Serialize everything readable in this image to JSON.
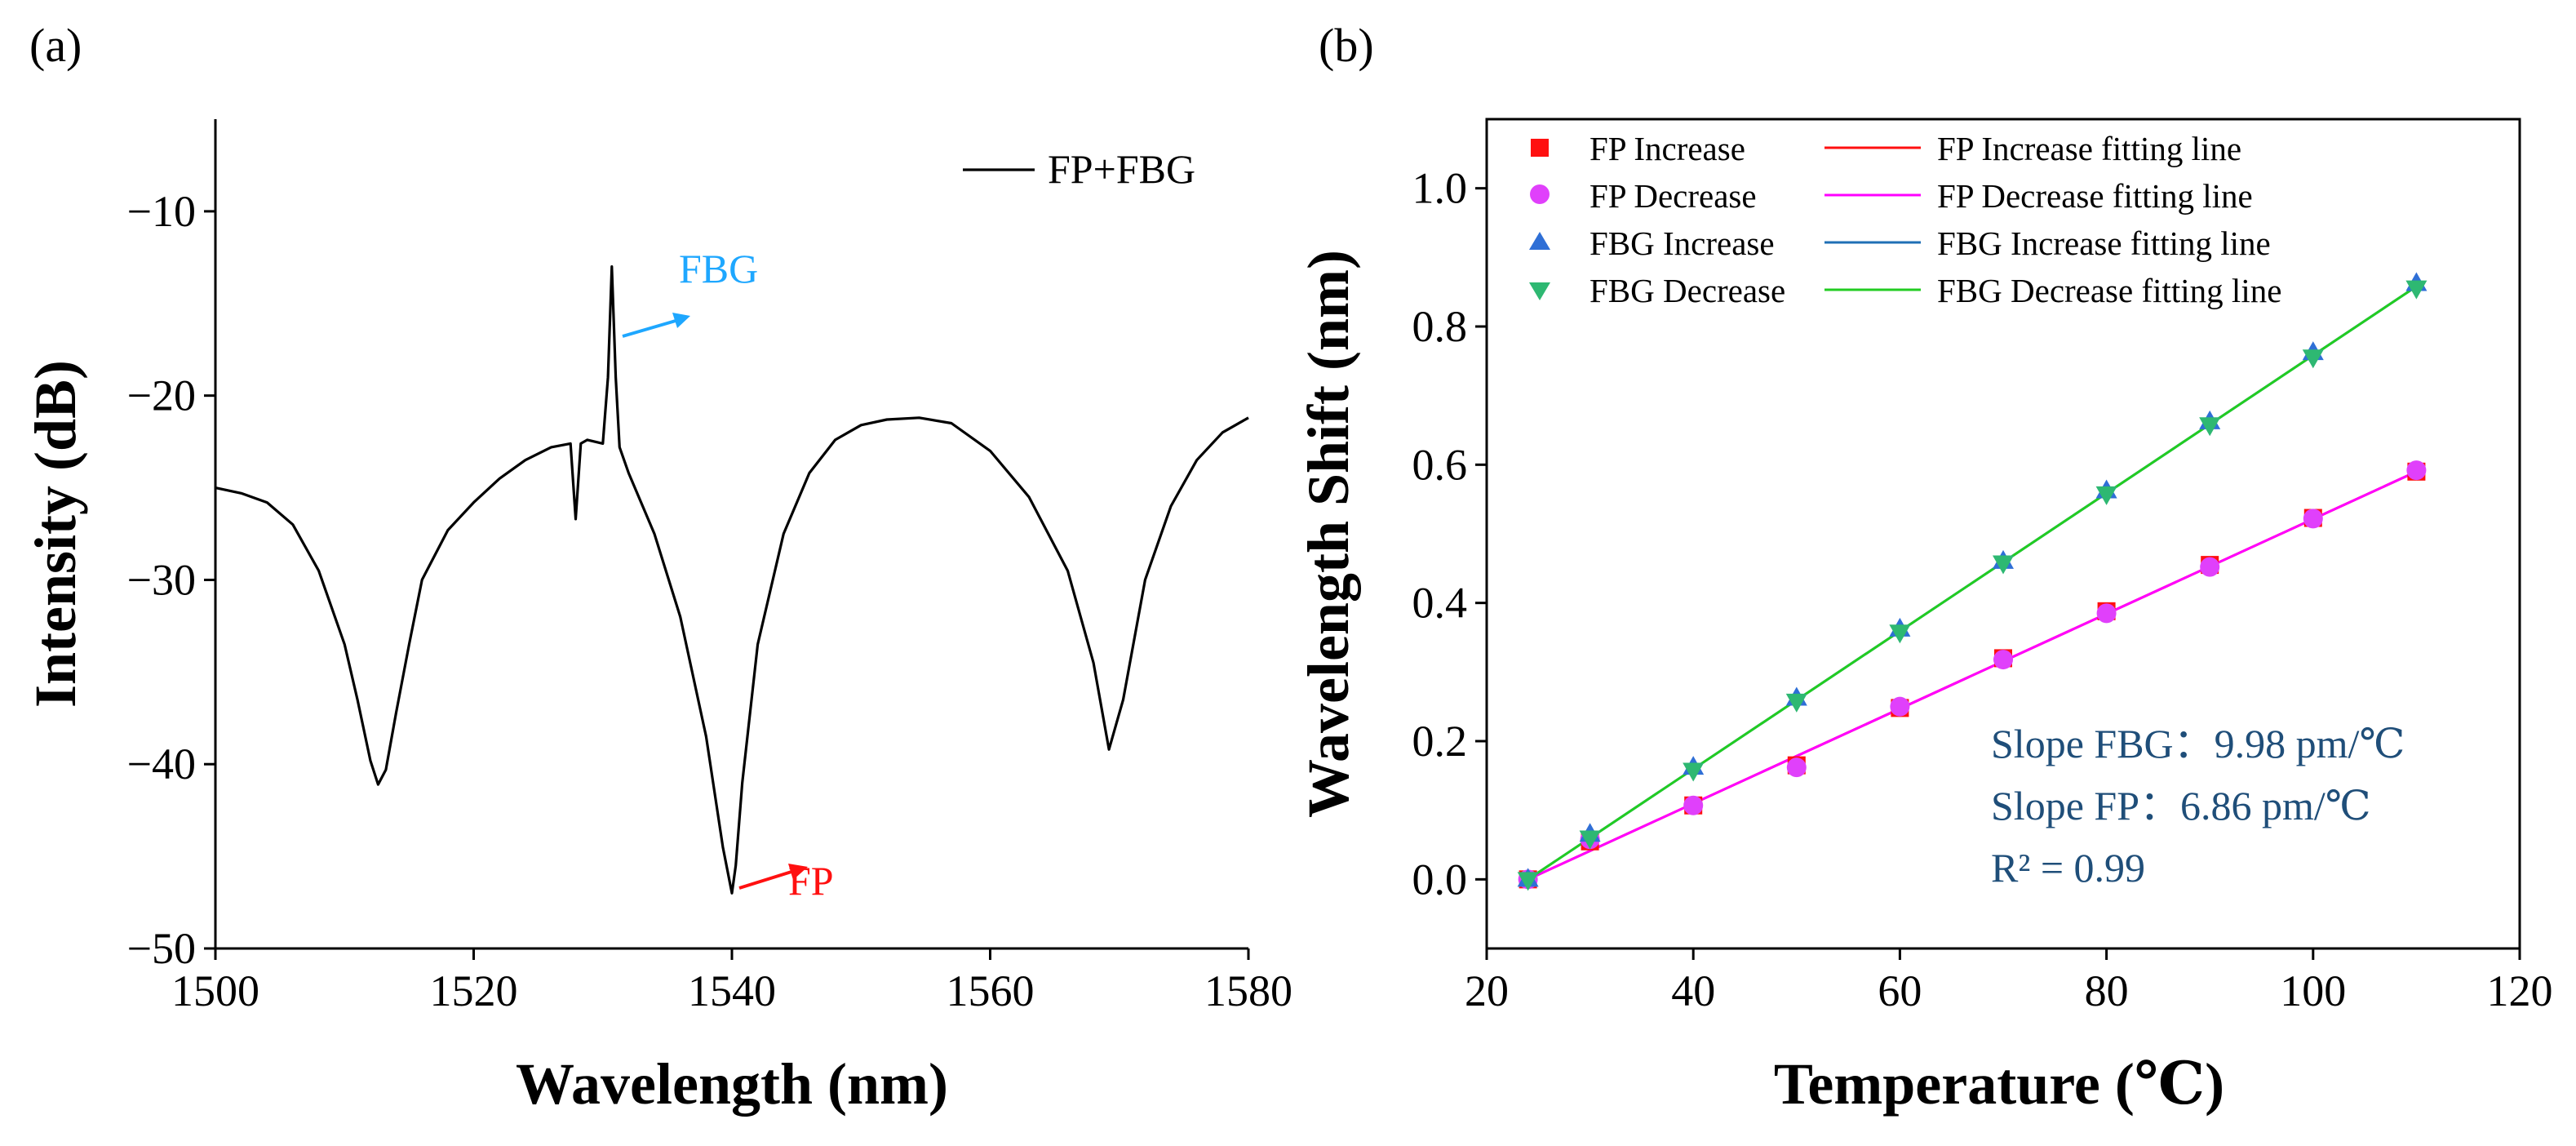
{
  "panels": {
    "a": {
      "label": "(a)",
      "chart_data": {
        "type": "line",
        "xlabel": "Wavelength (nm)",
        "ylabel": "Intensity (dB)",
        "xlim": [
          1500,
          1580
        ],
        "ylim": [
          -50,
          -5
        ],
        "xticks": [
          "1500",
          "1520",
          "1540",
          "1560",
          "1580"
        ],
        "yticks": [
          "−10",
          "−20",
          "−30",
          "−40",
          "−50"
        ],
        "xtick_values": [
          1500,
          1520,
          1540,
          1560,
          1580
        ],
        "ytick_values": [
          -10,
          -20,
          -30,
          -40,
          -50
        ],
        "legend_position": "top-right",
        "series": [
          {
            "name": "FP+FBG",
            "color": "#000000",
            "x": [
              1500,
              1502,
              1504,
              1506,
              1508,
              1510,
              1511,
              1512,
              1512.6,
              1513.2,
              1514,
              1515,
              1516,
              1518,
              1520,
              1522,
              1524,
              1526,
              1527.5,
              1527.9,
              1528.3,
              1528.8,
              1530.0,
              1530.4,
              1530.7,
              1531.0,
              1531.3,
              1532,
              1534,
              1536,
              1538,
              1539.3,
              1540.0,
              1540.3,
              1540.8,
              1542,
              1544,
              1546,
              1548,
              1550,
              1552,
              1554.5,
              1557,
              1560,
              1563,
              1566,
              1568,
              1569.2,
              1570.3,
              1572,
              1574,
              1576,
              1578,
              1580
            ],
            "y": [
              -25,
              -25.3,
              -25.8,
              -27,
              -29.5,
              -33.5,
              -36.5,
              -39.8,
              -41.1,
              -40.3,
              -37.2,
              -33.5,
              -30,
              -27.3,
              -25.8,
              -24.5,
              -23.5,
              -22.8,
              -22.6,
              -26.7,
              -22.6,
              -22.4,
              -22.6,
              -19,
              -13,
              -19,
              -22.8,
              -24.2,
              -27.5,
              -32,
              -38.5,
              -44.5,
              -47,
              -45.5,
              -41,
              -33.5,
              -27.5,
              -24.2,
              -22.4,
              -21.6,
              -21.3,
              -21.2,
              -21.5,
              -23,
              -25.5,
              -29.5,
              -34.5,
              -39.2,
              -36.5,
              -30,
              -26,
              -23.5,
              -22,
              -21.2
            ]
          }
        ],
        "annotations": [
          {
            "text": "FBG",
            "color": "#1ea7ff",
            "x_data": 1537.5,
            "y_data": -17.5
          },
          {
            "text": "FP",
            "color": "#ff1010",
            "x_data": 1547,
            "y_data": -47.5
          }
        ]
      }
    },
    "b": {
      "label": "(b)",
      "chart_data": {
        "type": "scatter",
        "xlabel": "Temperature (℃)",
        "ylabel": "Wavelength Shift (nm)",
        "xlim": [
          20,
          120
        ],
        "ylim": [
          -0.1,
          1.1
        ],
        "xticks": [
          "20",
          "40",
          "60",
          "80",
          "100",
          "120"
        ],
        "yticks": [
          "0.0",
          "0.2",
          "0.4",
          "0.6",
          "0.8",
          "1.0"
        ],
        "xtick_values": [
          20,
          40,
          60,
          80,
          100,
          120
        ],
        "ytick_values": [
          0,
          0.2,
          0.4,
          0.6,
          0.8,
          1.0
        ],
        "legend_position": "top-left",
        "x": [
          24,
          30,
          40,
          50,
          60,
          70,
          80,
          90,
          100,
          110
        ],
        "series": [
          {
            "name": "FP Increase",
            "marker": "square",
            "color": "#ff1010",
            "values": [
              0.0,
              0.055,
              0.107,
              0.165,
              0.248,
              0.32,
              0.388,
              0.455,
              0.523,
              0.59
            ]
          },
          {
            "name": "FP Decrease",
            "marker": "circle",
            "color": "#e040fb",
            "values": [
              0.0,
              0.058,
              0.107,
              0.162,
              0.25,
              0.318,
              0.385,
              0.452,
              0.522,
              0.592
            ]
          },
          {
            "name": "FBG Increase",
            "marker": "triangle-up",
            "color": "#2f6fd6",
            "values": [
              0.0,
              0.065,
              0.162,
              0.262,
              0.362,
              0.46,
              0.562,
              0.662,
              0.762,
              0.862
            ]
          },
          {
            "name": "FBG Decrease",
            "marker": "triangle-down",
            "color": "#2eb872",
            "values": [
              0.0,
              0.06,
              0.158,
              0.258,
              0.358,
              0.458,
              0.558,
              0.658,
              0.756,
              0.856
            ]
          }
        ],
        "fit_lines": [
          {
            "name": "FP Increase fitting line",
            "color": "#ff1010",
            "x": [
              24,
              110
            ],
            "y": [
              0.0,
              0.59
            ]
          },
          {
            "name": "FP Decrease fitting line",
            "color": "#ff00ff",
            "x": [
              24,
              110
            ],
            "y": [
              0.0,
              0.59
            ]
          },
          {
            "name": "FBG Increase fitting line",
            "color": "#1f6fb5",
            "x": [
              24,
              110
            ],
            "y": [
              0.0,
              0.858
            ]
          },
          {
            "name": "FBG Decrease fitting line",
            "color": "#22cc22",
            "x": [
              24,
              110
            ],
            "y": [
              0.0,
              0.858
            ]
          }
        ],
        "annotations": [
          "Slope FBG：9.98 pm/℃",
          "Slope FP：6.86 pm/℃",
          "R² = 0.99"
        ]
      }
    }
  }
}
